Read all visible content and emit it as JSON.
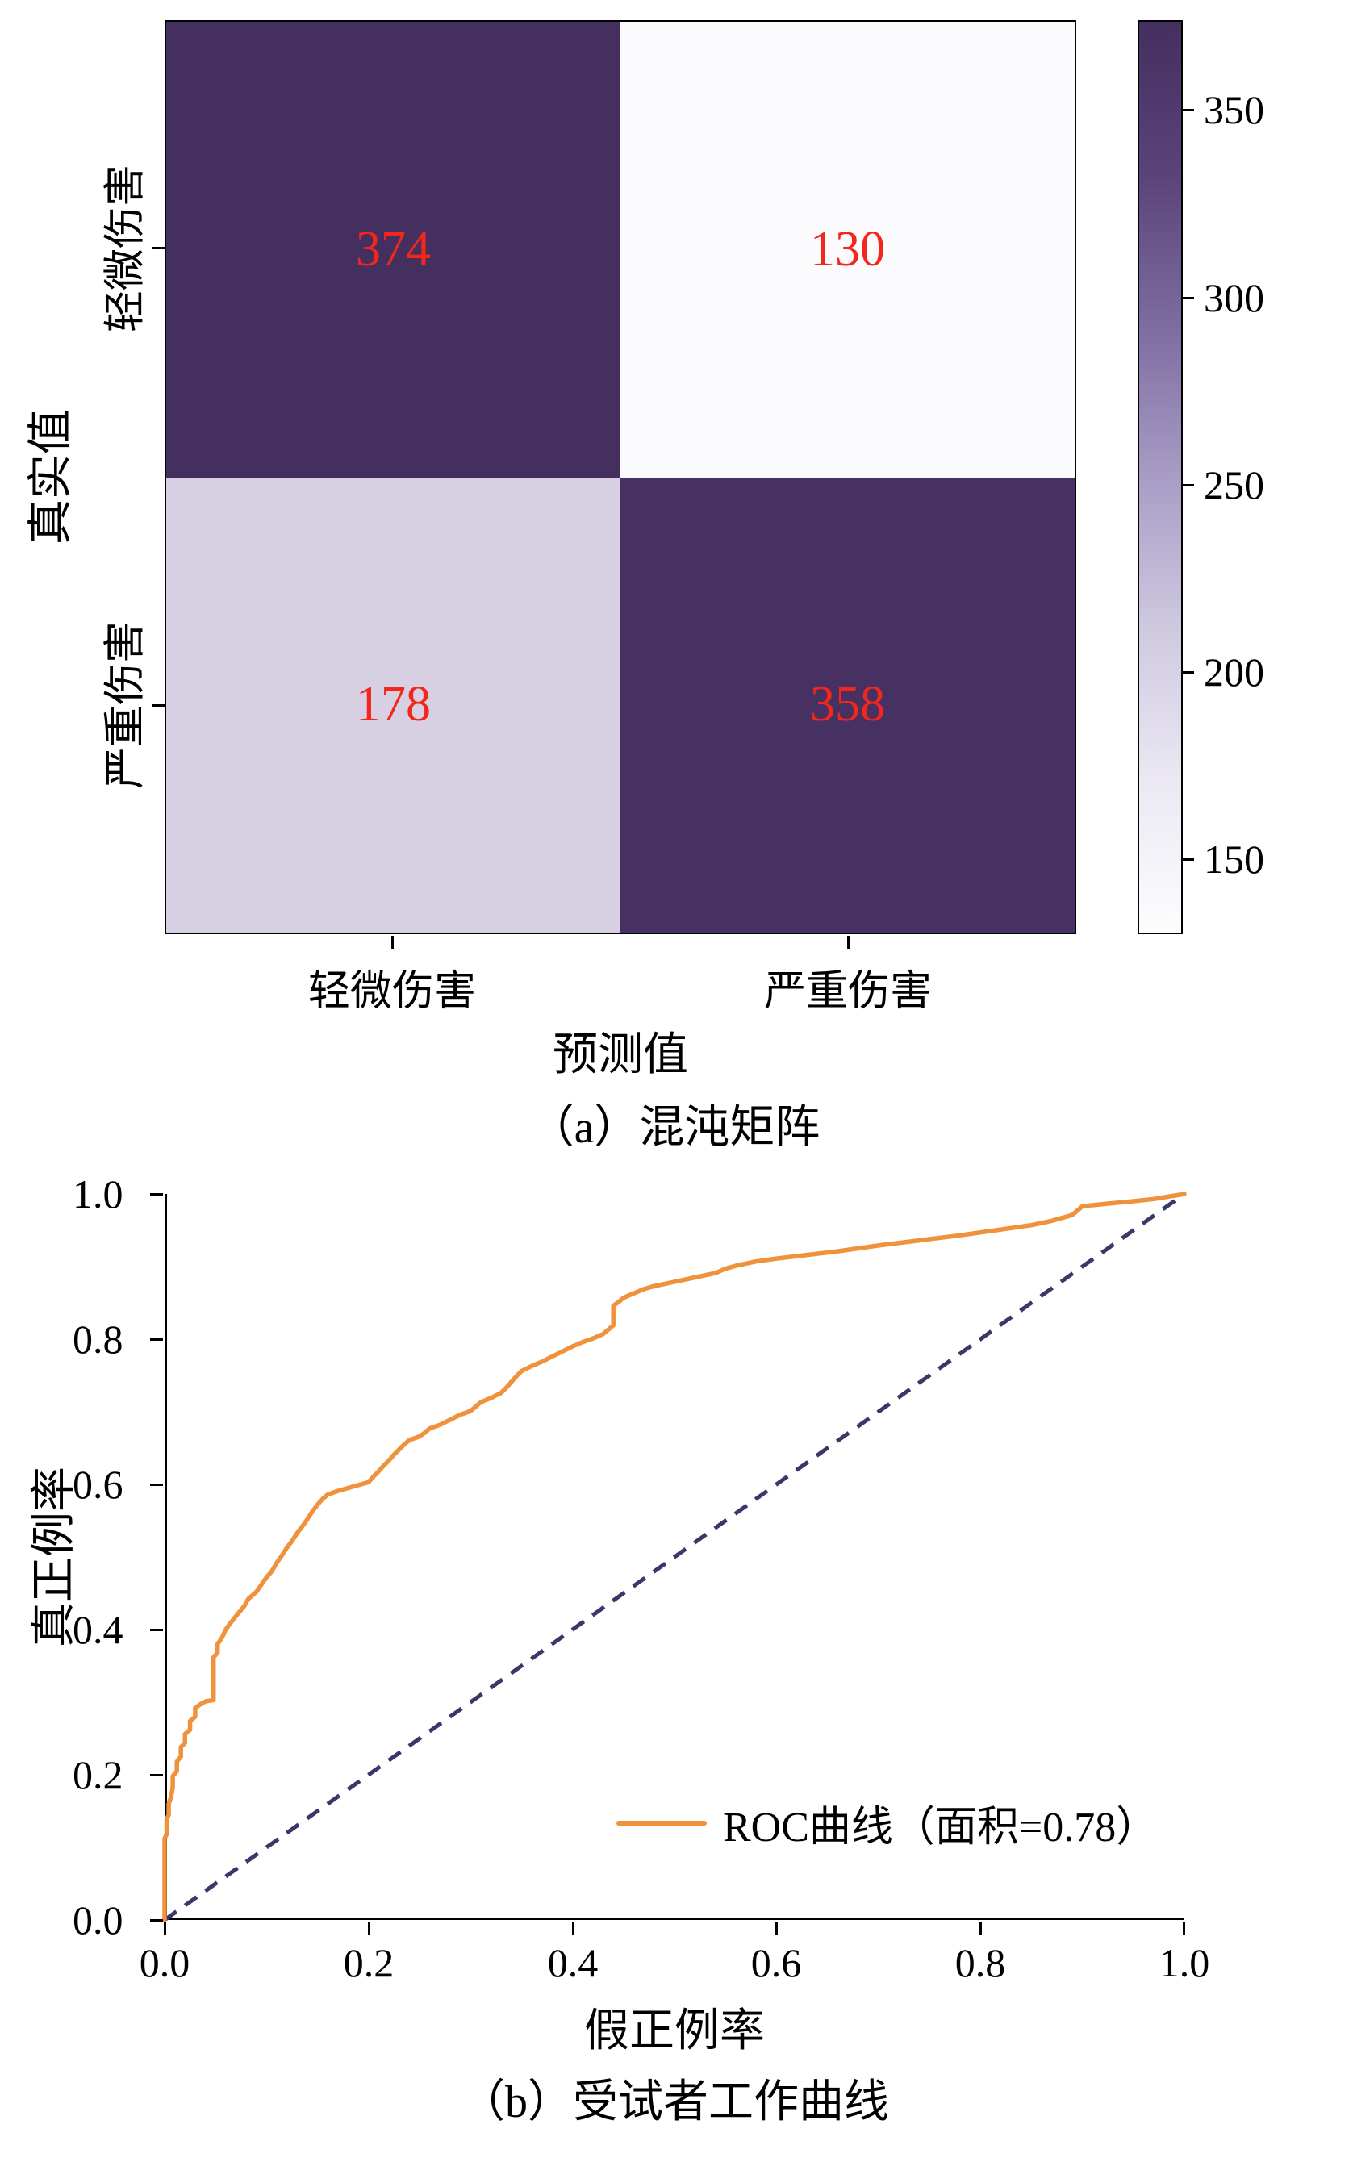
{
  "chart_data": [
    {
      "type": "heatmap",
      "title": "（a）混沌矩阵",
      "xlabel": "预测值",
      "ylabel": "真实值",
      "row_labels": [
        "轻微伤害",
        "严重伤害"
      ],
      "col_labels": [
        "轻微伤害",
        "严重伤害"
      ],
      "values": [
        [
          374,
          130
        ],
        [
          178,
          358
        ]
      ],
      "value_color": "#f2261b",
      "cell_colors": [
        [
          "#442f5f",
          "#fbfafd"
        ],
        [
          "#d7cfe2",
          "#473163"
        ]
      ],
      "colorbar": {
        "min": 130,
        "max": 374,
        "ticks": [
          350,
          300,
          250,
          200,
          150
        ],
        "gradient_top_to_bottom": [
          "#442f5f",
          "#5a4379",
          "#7d6ca0",
          "#a89cc5",
          "#cfc9e0",
          "#ebe8f3",
          "#fdfdfe"
        ]
      }
    },
    {
      "type": "line",
      "title": "（b）受试者工作曲线",
      "xlabel": "假正例率",
      "ylabel": "真正例率",
      "xlim": [
        0,
        1
      ],
      "ylim": [
        0,
        1
      ],
      "grid": false,
      "xticks": [
        "0.0",
        "0.2",
        "0.4",
        "0.6",
        "0.8",
        "1.0"
      ],
      "yticks": [
        "0.0",
        "0.2",
        "0.4",
        "0.6",
        "0.8",
        "1.0"
      ],
      "auc": 0.78,
      "legend": {
        "label": "ROC曲线（面积=0.78）",
        "color": "#f0913c",
        "position": "lower right",
        "frame": false
      },
      "diagonal": {
        "color": "#3c3769",
        "style": "dashed",
        "points": [
          [
            0,
            0
          ],
          [
            1,
            1
          ]
        ]
      },
      "series": [
        {
          "name": "ROC曲线",
          "color": "#f0913c",
          "points": [
            [
              0,
              0
            ],
            [
              0,
              0.112
            ],
            [
              0.002,
              0.118
            ],
            [
              0.002,
              0.138
            ],
            [
              0.004,
              0.145
            ],
            [
              0.004,
              0.16
            ],
            [
              0.006,
              0.168
            ],
            [
              0.008,
              0.182
            ],
            [
              0.008,
              0.198
            ],
            [
              0.012,
              0.205
            ],
            [
              0.012,
              0.218
            ],
            [
              0.016,
              0.225
            ],
            [
              0.016,
              0.238
            ],
            [
              0.02,
              0.244
            ],
            [
              0.02,
              0.256
            ],
            [
              0.025,
              0.262
            ],
            [
              0.025,
              0.274
            ],
            [
              0.03,
              0.28
            ],
            [
              0.03,
              0.292
            ],
            [
              0.035,
              0.297
            ],
            [
              0.04,
              0.301
            ],
            [
              0.048,
              0.303
            ],
            [
              0.048,
              0.362
            ],
            [
              0.052,
              0.368
            ],
            [
              0.052,
              0.38
            ],
            [
              0.056,
              0.388
            ],
            [
              0.06,
              0.4
            ],
            [
              0.064,
              0.408
            ],
            [
              0.068,
              0.415
            ],
            [
              0.072,
              0.422
            ],
            [
              0.078,
              0.432
            ],
            [
              0.082,
              0.442
            ],
            [
              0.09,
              0.452
            ],
            [
              0.095,
              0.462
            ],
            [
              0.1,
              0.472
            ],
            [
              0.105,
              0.48
            ],
            [
              0.11,
              0.492
            ],
            [
              0.115,
              0.502
            ],
            [
              0.12,
              0.513
            ],
            [
              0.125,
              0.522
            ],
            [
              0.13,
              0.533
            ],
            [
              0.135,
              0.542
            ],
            [
              0.14,
              0.552
            ],
            [
              0.145,
              0.563
            ],
            [
              0.15,
              0.572
            ],
            [
              0.155,
              0.58
            ],
            [
              0.16,
              0.586
            ],
            [
              0.17,
              0.591
            ],
            [
              0.18,
              0.595
            ],
            [
              0.19,
              0.599
            ],
            [
              0.2,
              0.603
            ],
            [
              0.205,
              0.611
            ],
            [
              0.21,
              0.618
            ],
            [
              0.215,
              0.626
            ],
            [
              0.22,
              0.633
            ],
            [
              0.225,
              0.641
            ],
            [
              0.23,
              0.648
            ],
            [
              0.235,
              0.655
            ],
            [
              0.24,
              0.661
            ],
            [
              0.25,
              0.666
            ],
            [
              0.255,
              0.671
            ],
            [
              0.26,
              0.677
            ],
            [
              0.27,
              0.682
            ],
            [
              0.28,
              0.689
            ],
            [
              0.29,
              0.696
            ],
            [
              0.3,
              0.701
            ],
            [
              0.305,
              0.707
            ],
            [
              0.31,
              0.713
            ],
            [
              0.32,
              0.719
            ],
            [
              0.33,
              0.726
            ],
            [
              0.335,
              0.733
            ],
            [
              0.34,
              0.741
            ],
            [
              0.345,
              0.749
            ],
            [
              0.35,
              0.756
            ],
            [
              0.36,
              0.763
            ],
            [
              0.37,
              0.769
            ],
            [
              0.38,
              0.776
            ],
            [
              0.39,
              0.783
            ],
            [
              0.4,
              0.79
            ],
            [
              0.41,
              0.796
            ],
            [
              0.42,
              0.801
            ],
            [
              0.43,
              0.807
            ],
            [
              0.435,
              0.813
            ],
            [
              0.44,
              0.819
            ],
            [
              0.44,
              0.846
            ],
            [
              0.445,
              0.851
            ],
            [
              0.45,
              0.857
            ],
            [
              0.46,
              0.863
            ],
            [
              0.47,
              0.869
            ],
            [
              0.48,
              0.873
            ],
            [
              0.5,
              0.879
            ],
            [
              0.52,
              0.885
            ],
            [
              0.54,
              0.891
            ],
            [
              0.55,
              0.897
            ],
            [
              0.56,
              0.901
            ],
            [
              0.58,
              0.907
            ],
            [
              0.6,
              0.911
            ],
            [
              0.63,
              0.916
            ],
            [
              0.66,
              0.921
            ],
            [
              0.7,
              0.929
            ],
            [
              0.74,
              0.936
            ],
            [
              0.78,
              0.943
            ],
            [
              0.82,
              0.951
            ],
            [
              0.85,
              0.957
            ],
            [
              0.87,
              0.963
            ],
            [
              0.89,
              0.971
            ],
            [
              0.9,
              0.983
            ],
            [
              0.92,
              0.986
            ],
            [
              0.95,
              0.99
            ],
            [
              0.97,
              0.993
            ],
            [
              1,
              1
            ]
          ]
        }
      ]
    }
  ]
}
